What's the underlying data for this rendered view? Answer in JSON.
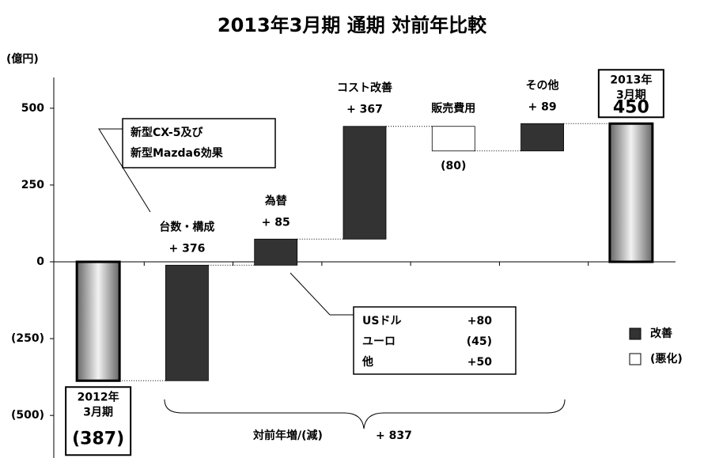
{
  "chart_data": {
    "type": "waterfall",
    "title": "2013年3月期 通期 対前年比較",
    "y_axis_label": "(億円)",
    "categories": [
      [
        "2012年",
        "3月期"
      ],
      "台数・構成",
      "為替",
      "コスト改善",
      "販売費用",
      "その他",
      [
        "2013年",
        "3月期"
      ]
    ],
    "measure": [
      "total",
      "relative",
      "relative",
      "relative",
      "relative",
      "relative",
      "total"
    ],
    "values": [
      -387,
      376,
      85,
      367,
      -80,
      89,
      450
    ],
    "value_labels": [
      "(387)",
      "+ 376",
      "+ 85",
      "+ 367",
      "(80)",
      "+ 89",
      "450"
    ],
    "colors": {
      "increase": "#333333",
      "decrease": "#ffffff",
      "total": "#999999"
    },
    "legend": [
      {
        "name": "改善",
        "color": "#333333"
      },
      {
        "name": "(悪化)",
        "color": "#ffffff"
      }
    ],
    "legend_position": "right",
    "ylim": [
      -600,
      600
    ],
    "yticks": [
      {
        "value": -500,
        "label": "(500)"
      },
      {
        "value": -250,
        "label": "(250)"
      },
      0,
      250,
      500
    ],
    "grid": false,
    "annotations": {
      "models": [
        "新型CX-5及び",
        "新型Mazda6効果"
      ],
      "fx_breakdown": [
        [
          "USドル",
          "+80"
        ],
        [
          "ユーロ",
          "(45)"
        ],
        [
          "他",
          "+50"
        ]
      ],
      "total_change": {
        "label": "対前年増/(減)",
        "value": 837,
        "value_label": "+ 837"
      }
    }
  }
}
